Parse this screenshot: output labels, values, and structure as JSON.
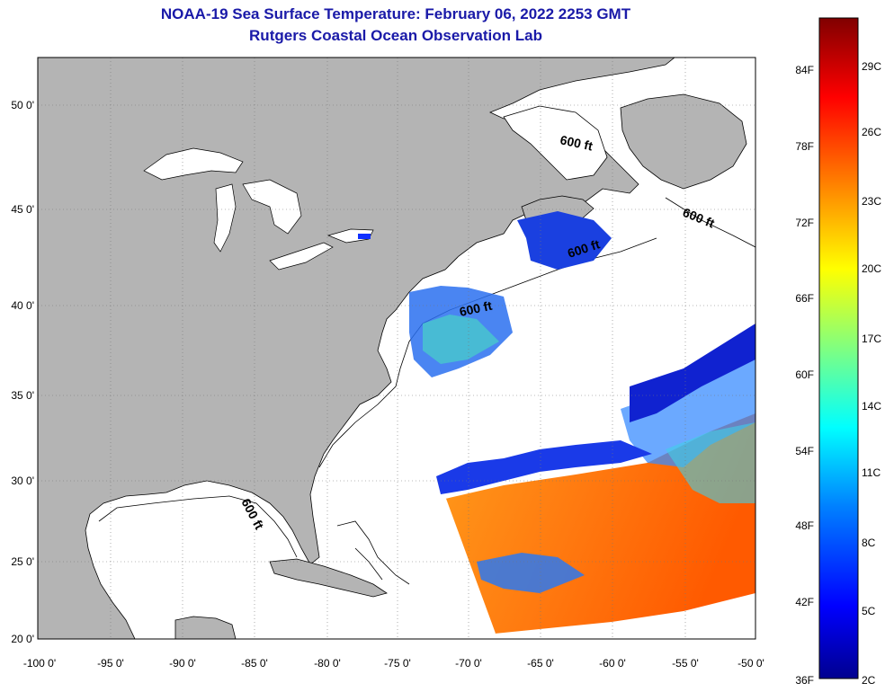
{
  "header": {
    "title": "NOAA-19 Sea Surface Temperature:  February 06, 2022 2253 GMT",
    "subtitle": "Rutgers Coastal Ocean Observation Lab"
  },
  "map": {
    "lon_range": [
      -100,
      -50
    ],
    "lat_range": [
      20,
      52
    ],
    "lat_ticks": [
      "50 0'",
      "45 0'",
      "40 0'",
      "35 0'",
      "30 0'",
      "25 0'",
      "20 0'"
    ],
    "lon_ticks": [
      "-100 0'",
      "-95 0'",
      "-90 0'",
      "-85 0'",
      "-80 0'",
      "-75 0'",
      "-70 0'",
      "-65 0'",
      "-60 0'",
      "-55 0'",
      "-50 0'"
    ],
    "isobath_labels": [
      "600 ft",
      "600 ft",
      "600 ft",
      "600 ft",
      "600 ft"
    ],
    "land_color": "#b4b4b4",
    "ocean_color": "#ffffff"
  },
  "colorbar": {
    "fahrenheit_labels": [
      "84F",
      "78F",
      "72F",
      "66F",
      "60F",
      "54F",
      "48F",
      "42F",
      "36F"
    ],
    "celsius_labels": [
      "29C",
      "26C",
      "23C",
      "20C",
      "17C",
      "14C",
      "11C",
      "8C",
      "5C",
      "2C"
    ]
  }
}
